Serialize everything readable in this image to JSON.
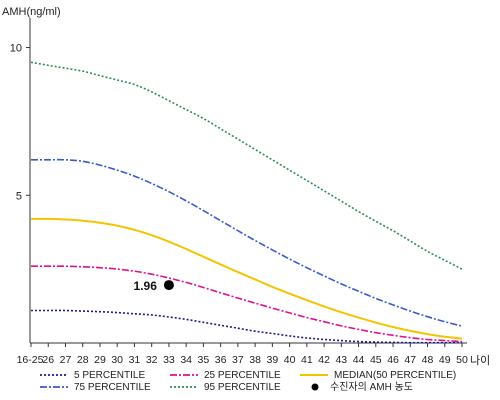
{
  "chart_data": {
    "type": "line",
    "title": "",
    "ylabel": "AMH(ng/ml)",
    "xlabel": "나이",
    "ylim": [
      0,
      11
    ],
    "yticks": [
      "10",
      "5"
    ],
    "ytick_values": [
      10,
      5
    ],
    "categories": [
      "16-25",
      "26",
      "27",
      "28",
      "29",
      "30",
      "31",
      "32",
      "33",
      "34",
      "35",
      "36",
      "37",
      "38",
      "39",
      "40",
      "41",
      "42",
      "43",
      "44",
      "45",
      "46",
      "47",
      "48",
      "49",
      "50"
    ],
    "series": [
      {
        "name": "5 PERCENTILE",
        "color": "#1a1a8c",
        "dash": "2,2",
        "values": [
          1.1,
          1.1,
          1.1,
          1.08,
          1.06,
          1.03,
          0.99,
          0.95,
          0.88,
          0.8,
          0.7,
          0.6,
          0.5,
          0.4,
          0.32,
          0.24,
          0.17,
          0.12,
          0.08,
          0.05,
          0.03,
          0.02,
          0.01,
          0.01,
          0.01,
          0.01
        ]
      },
      {
        "name": "25 PERCENTILE",
        "color": "#e0118a",
        "dash": "7,2,2,2",
        "values": [
          2.6,
          2.6,
          2.6,
          2.58,
          2.55,
          2.5,
          2.43,
          2.33,
          2.2,
          2.05,
          1.88,
          1.7,
          1.52,
          1.35,
          1.18,
          1.02,
          0.86,
          0.72,
          0.58,
          0.46,
          0.35,
          0.26,
          0.18,
          0.12,
          0.08,
          0.05
        ]
      },
      {
        "name": "MEDIAN(50 PERCENTILE)",
        "color": "#f5c400",
        "dash": "",
        "values": [
          4.2,
          4.2,
          4.18,
          4.14,
          4.07,
          3.97,
          3.83,
          3.65,
          3.43,
          3.18,
          2.92,
          2.66,
          2.4,
          2.15,
          1.9,
          1.67,
          1.45,
          1.24,
          1.04,
          0.86,
          0.69,
          0.54,
          0.41,
          0.3,
          0.21,
          0.15
        ]
      },
      {
        "name": "75 PERCENTILE",
        "color": "#3a5bc7",
        "dash": "7,2,2,2",
        "values": [
          6.2,
          6.2,
          6.2,
          6.15,
          6.02,
          5.85,
          5.65,
          5.4,
          5.12,
          4.81,
          4.48,
          4.14,
          3.8,
          3.47,
          3.15,
          2.84,
          2.55,
          2.27,
          2.0,
          1.75,
          1.51,
          1.29,
          1.08,
          0.89,
          0.72,
          0.57
        ]
      },
      {
        "name": "95 PERCENTILE",
        "color": "#2e8b57",
        "dash": "2,2",
        "values": [
          9.5,
          9.4,
          9.3,
          9.2,
          9.05,
          8.9,
          8.75,
          8.5,
          8.2,
          7.9,
          7.6,
          7.25,
          6.9,
          6.55,
          6.2,
          5.85,
          5.5,
          5.15,
          4.8,
          4.45,
          4.12,
          3.8,
          3.45,
          3.1,
          2.8,
          2.5
        ]
      }
    ],
    "marker": {
      "name": "수진자의 AMH 농도",
      "x": "33",
      "value": 1.96,
      "label": "1.96",
      "color": "#000000"
    },
    "legend": [
      {
        "series": 0,
        "label": "5 PERCENTILE"
      },
      {
        "series": 1,
        "label": "25 PERCENTILE"
      },
      {
        "series": 2,
        "label": "MEDIAN(50 PERCENTILE)"
      },
      {
        "series": 3,
        "label": "75 PERCENTILE"
      },
      {
        "series": 4,
        "label": "95 PERCENTILE"
      },
      {
        "marker": true,
        "label": "수진자의 AMH 농도"
      }
    ]
  }
}
